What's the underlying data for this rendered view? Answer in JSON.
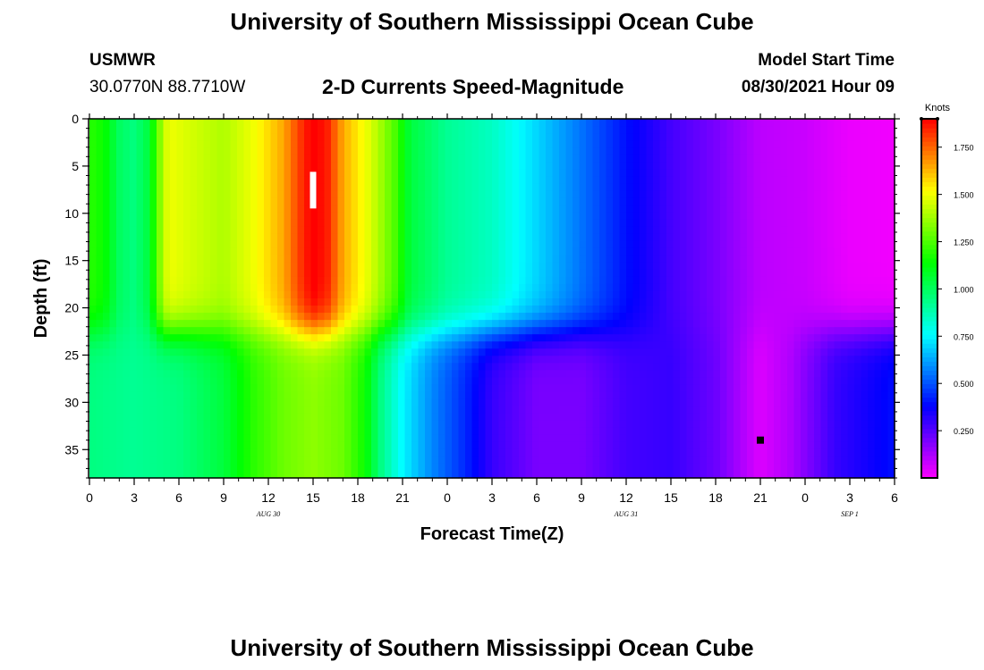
{
  "page": {
    "title_top": "University of Southern Mississippi Ocean Cube",
    "title_bottom": "University of Southern Mississippi Ocean Cube",
    "station_id": "USMWR",
    "station_coords": "30.0770N  88.7710W",
    "plot_title": "2-D Currents Speed-Magnitude",
    "model_start_label": "Model Start Time",
    "model_start_value": "08/30/2021 Hour 09"
  },
  "chart_data": {
    "type": "heatmap",
    "title": "2-D Currents Speed-Magnitude",
    "xlabel": "Forecast Time(Z)",
    "ylabel": "Depth (ft)",
    "x_unit": "forecast hour",
    "xlim": [
      0,
      54
    ],
    "ylim": [
      0,
      38
    ],
    "y_inverted": true,
    "x_ticks": [
      0,
      3,
      6,
      9,
      12,
      15,
      18,
      21,
      24,
      27,
      30,
      33,
      36,
      39,
      42,
      45,
      48,
      51,
      54
    ],
    "x_tick_labels": [
      "0",
      "3",
      "6",
      "9",
      "12",
      "15",
      "18",
      "21",
      "0",
      "3",
      "6",
      "9",
      "12",
      "15",
      "18",
      "21",
      "0",
      "3",
      "6"
    ],
    "y_ticks": [
      0,
      5,
      10,
      15,
      20,
      25,
      30,
      35
    ],
    "y_tick_labels": [
      "0",
      "5",
      "10",
      "15",
      "20",
      "25",
      "30",
      "35"
    ],
    "date_labels": [
      {
        "x": 12,
        "text": "AUG 30"
      },
      {
        "x": 36,
        "text": "AUG 31"
      },
      {
        "x": 51,
        "text": "SEP 1"
      }
    ],
    "colorbar": {
      "label": "Knots",
      "min": 0,
      "max": 1.9,
      "ticks": [
        0.25,
        0.5,
        0.75,
        1.0,
        1.25,
        1.5,
        1.75
      ],
      "tick_labels": [
        "0.250",
        "0.500",
        "0.750",
        "1.000",
        "1.250",
        "1.500",
        "1.750"
      ],
      "colormap": [
        "#ff00ff",
        "#0000ff",
        "#00ffff",
        "#00ff00",
        "#ffff00",
        "#ff0000"
      ]
    },
    "markers": [
      {
        "type": "max",
        "x": 15,
        "y": 7.5,
        "color": "#ffffff"
      },
      {
        "type": "min",
        "x": 45,
        "y": 34,
        "color": "#000000"
      }
    ],
    "surface_profile": [
      {
        "x": 0,
        "v": 1.2
      },
      {
        "x": 1,
        "v": 1.15
      },
      {
        "x": 2,
        "v": 1.0
      },
      {
        "x": 3,
        "v": 0.95
      },
      {
        "x": 4,
        "v": 1.05
      },
      {
        "x": 4.6,
        "v": 1.3
      },
      {
        "x": 5.3,
        "v": 1.5
      },
      {
        "x": 7,
        "v": 1.45
      },
      {
        "x": 9,
        "v": 1.4
      },
      {
        "x": 11,
        "v": 1.5
      },
      {
        "x": 13,
        "v": 1.65
      },
      {
        "x": 14,
        "v": 1.8
      },
      {
        "x": 15,
        "v": 1.92
      },
      {
        "x": 16,
        "v": 1.85
      },
      {
        "x": 17,
        "v": 1.65
      },
      {
        "x": 19,
        "v": 1.45
      },
      {
        "x": 20.5,
        "v": 1.25
      },
      {
        "x": 21.5,
        "v": 1.05
      },
      {
        "x": 24,
        "v": 0.92
      },
      {
        "x": 27,
        "v": 0.85
      },
      {
        "x": 30,
        "v": 0.7
      },
      {
        "x": 33,
        "v": 0.55
      },
      {
        "x": 36,
        "v": 0.4
      },
      {
        "x": 39,
        "v": 0.28
      },
      {
        "x": 42,
        "v": 0.2
      },
      {
        "x": 45,
        "v": 0.1
      },
      {
        "x": 48,
        "v": 0.08
      },
      {
        "x": 51,
        "v": 0.03
      },
      {
        "x": 54,
        "v": 0.02
      }
    ],
    "bottom_profile": [
      {
        "x": 0,
        "v": 0.95
      },
      {
        "x": 3,
        "v": 0.92
      },
      {
        "x": 6,
        "v": 0.95
      },
      {
        "x": 9,
        "v": 1.05
      },
      {
        "x": 11,
        "v": 1.2
      },
      {
        "x": 13,
        "v": 1.3
      },
      {
        "x": 15,
        "v": 1.35
      },
      {
        "x": 17,
        "v": 1.3
      },
      {
        "x": 18.5,
        "v": 1.15
      },
      {
        "x": 19.5,
        "v": 0.95
      },
      {
        "x": 21,
        "v": 0.75
      },
      {
        "x": 23,
        "v": 0.58
      },
      {
        "x": 25,
        "v": 0.45
      },
      {
        "x": 27,
        "v": 0.3
      },
      {
        "x": 30,
        "v": 0.2
      },
      {
        "x": 33,
        "v": 0.2
      },
      {
        "x": 36,
        "v": 0.28
      },
      {
        "x": 39,
        "v": 0.3
      },
      {
        "x": 42,
        "v": 0.22
      },
      {
        "x": 45,
        "v": 0.05
      },
      {
        "x": 47,
        "v": 0.12
      },
      {
        "x": 50,
        "v": 0.3
      },
      {
        "x": 54,
        "v": 0.4
      }
    ],
    "layer_interface_depth_ft": 22.5
  }
}
